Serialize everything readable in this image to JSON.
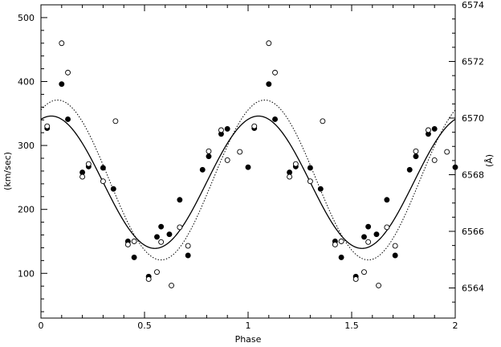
{
  "chart_data": {
    "type": "scatter",
    "xlabel": "Phase",
    "ylabel_left": "(km/sec)",
    "ylabel_right": "(Å)",
    "xlim": [
      0,
      2
    ],
    "ylim_left": [
      30,
      520
    ],
    "ylim_right": [
      6562.936,
      6574.0
    ],
    "x_ticks": [
      0,
      0.5,
      1,
      1.5,
      2
    ],
    "x_tick_labels": [
      "0",
      "0.5",
      "1",
      "1.5",
      "2"
    ],
    "y_left_ticks": [
      100,
      200,
      300,
      400,
      500
    ],
    "y_left_tick_labels": [
      "100",
      "200",
      "300",
      "400",
      "500"
    ],
    "y_right_ticks": [
      6564,
      6566,
      6568,
      6570,
      6572,
      6574
    ],
    "y_right_tick_labels": [
      "6564",
      "6566",
      "6568",
      "6570",
      "6572",
      "6574"
    ],
    "grid": false,
    "series": [
      {
        "marker": "filled-circle",
        "points": [
          [
            0.03,
            327
          ],
          [
            0.1,
            396
          ],
          [
            0.13,
            341
          ],
          [
            0.2,
            258
          ],
          [
            0.23,
            267
          ],
          [
            0.3,
            265
          ],
          [
            0.35,
            232
          ],
          [
            0.42,
            150
          ],
          [
            0.45,
            125
          ],
          [
            0.52,
            95
          ],
          [
            0.56,
            157
          ],
          [
            0.58,
            173
          ],
          [
            0.62,
            161
          ],
          [
            0.67,
            215
          ],
          [
            0.71,
            128
          ],
          [
            0.78,
            262
          ],
          [
            0.81,
            283
          ],
          [
            0.87,
            318
          ],
          [
            0.9,
            326
          ],
          [
            1.03,
            327
          ],
          [
            1.0,
            266
          ],
          [
            1.1,
            396
          ],
          [
            1.13,
            341
          ],
          [
            1.2,
            258
          ],
          [
            1.23,
            267
          ],
          [
            1.3,
            265
          ],
          [
            1.35,
            232
          ],
          [
            1.42,
            150
          ],
          [
            1.45,
            125
          ],
          [
            1.52,
            95
          ],
          [
            1.56,
            157
          ],
          [
            1.58,
            173
          ],
          [
            1.62,
            161
          ],
          [
            1.67,
            215
          ],
          [
            1.71,
            128
          ],
          [
            1.78,
            262
          ],
          [
            1.81,
            283
          ],
          [
            1.87,
            318
          ],
          [
            1.9,
            326
          ],
          [
            2.0,
            266
          ]
        ]
      },
      {
        "marker": "open-circle",
        "points": [
          [
            0.03,
            330
          ],
          [
            0.1,
            460
          ],
          [
            0.13,
            414
          ],
          [
            0.2,
            251
          ],
          [
            0.23,
            271
          ],
          [
            0.3,
            244
          ],
          [
            0.36,
            338
          ],
          [
            0.42,
            145
          ],
          [
            0.45,
            150
          ],
          [
            0.52,
            91
          ],
          [
            0.56,
            102
          ],
          [
            0.58,
            149
          ],
          [
            0.63,
            81
          ],
          [
            0.67,
            172
          ],
          [
            0.71,
            143
          ],
          [
            0.81,
            291
          ],
          [
            0.87,
            324
          ],
          [
            0.9,
            277
          ],
          [
            0.96,
            290
          ],
          [
            1.03,
            330
          ],
          [
            1.1,
            460
          ],
          [
            1.13,
            414
          ],
          [
            1.2,
            251
          ],
          [
            1.23,
            271
          ],
          [
            1.3,
            244
          ],
          [
            1.36,
            338
          ],
          [
            1.42,
            145
          ],
          [
            1.45,
            150
          ],
          [
            1.52,
            91
          ],
          [
            1.56,
            102
          ],
          [
            1.58,
            149
          ],
          [
            1.63,
            81
          ],
          [
            1.67,
            172
          ],
          [
            1.71,
            143
          ],
          [
            1.81,
            291
          ],
          [
            1.87,
            324
          ],
          [
            1.9,
            277
          ],
          [
            1.96,
            290
          ]
        ]
      }
    ],
    "curves": [
      {
        "style": "solid",
        "gamma": 242.5,
        "K": 103.5,
        "phase_max": 0.05
      },
      {
        "style": "dotted",
        "gamma": 246.0,
        "K": 125.0,
        "phase_max": 0.08
      }
    ]
  }
}
